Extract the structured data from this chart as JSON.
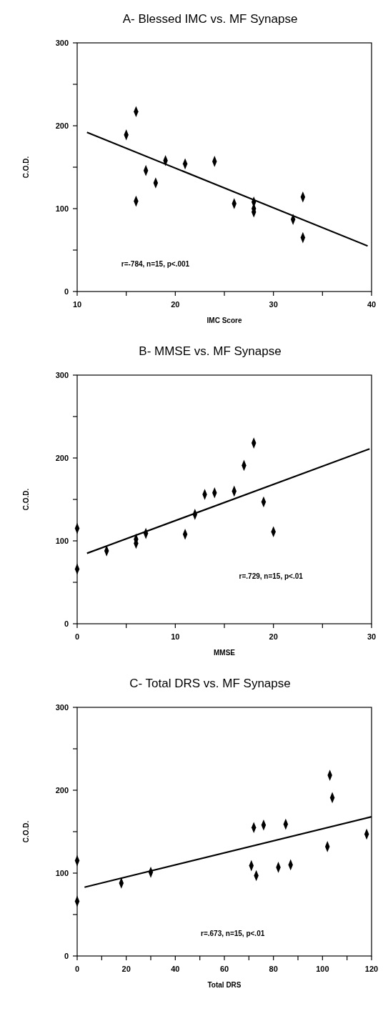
{
  "chart_data": [
    {
      "type": "scatter",
      "title": "A- Blessed IMC vs. MF Synapse",
      "xlabel": "IMC Score",
      "ylabel": "C.O.D.",
      "xlim": [
        10,
        40
      ],
      "xticks": [
        10,
        {
          "value": 15,
          "label": null
        },
        20,
        {
          "value": 25,
          "label": null
        },
        30,
        {
          "value": 35,
          "label": null
        },
        40
      ],
      "ylim": [
        0,
        300
      ],
      "yticks": [
        0,
        {
          "value": 50,
          "label": null
        },
        100,
        {
          "value": 150,
          "label": null
        },
        200,
        {
          "value": 250,
          "label": null
        },
        300
      ],
      "grid": false,
      "marker": "diamond",
      "annotations": [
        "r=-784, n=15, p<.001"
      ],
      "series": [
        {
          "color": "#000000",
          "x": [
            15,
            16,
            16,
            17,
            18,
            19,
            21,
            24,
            26,
            28,
            28,
            28,
            32,
            33,
            33
          ],
          "values": [
            189,
            217,
            109,
            146,
            131,
            158,
            154,
            157,
            106,
            108,
            100,
            96,
            87,
            114,
            65
          ]
        },
        {
          "type": "line",
          "color": "#000000",
          "marker": "none",
          "x": [
            11,
            39.6
          ],
          "values": [
            192,
            55
          ]
        }
      ]
    },
    {
      "type": "scatter",
      "title": "B- MMSE vs. MF Synapse",
      "xlabel": "MMSE",
      "ylabel": "C.O.D.",
      "xlim": [
        0,
        30
      ],
      "xticks": [
        0,
        {
          "value": 5,
          "label": null
        },
        10,
        {
          "value": 15,
          "label": null
        },
        20,
        {
          "value": 25,
          "label": null
        },
        30
      ],
      "ylim": [
        0,
        300
      ],
      "yticks": [
        0,
        {
          "value": 50,
          "label": null
        },
        100,
        {
          "value": 150,
          "label": null
        },
        200,
        {
          "value": 250,
          "label": null
        },
        300
      ],
      "grid": false,
      "marker": "diamond",
      "annotations": [
        "r=.729, n=15, p<.01"
      ],
      "series": [
        {
          "color": "#000000",
          "x": [
            0,
            0,
            3,
            6,
            6,
            7,
            11,
            12,
            13,
            14,
            16,
            17,
            18,
            19,
            20
          ],
          "values": [
            115,
            66,
            88,
            102,
            97,
            109,
            108,
            132,
            156,
            158,
            160,
            191,
            218,
            147,
            111
          ]
        },
        {
          "type": "line",
          "color": "#000000",
          "marker": "none",
          "x": [
            1,
            29.8
          ],
          "values": [
            85,
            211
          ]
        }
      ]
    },
    {
      "type": "scatter",
      "title": "C- Total DRS vs. MF Synapse",
      "xlabel": "Total DRS",
      "ylabel": "C.O.D.",
      "xlim": [
        0,
        120
      ],
      "xticks": [
        0,
        {
          "value": 10,
          "label": null
        },
        20,
        {
          "value": 30,
          "label": null
        },
        40,
        {
          "value": 50,
          "label": null
        },
        60,
        {
          "value": 70,
          "label": null
        },
        80,
        {
          "value": 90,
          "label": null
        },
        100,
        {
          "value": 110,
          "label": null
        },
        120
      ],
      "ylim": [
        0,
        300
      ],
      "yticks": [
        0,
        {
          "value": 50,
          "label": null
        },
        100,
        {
          "value": 150,
          "label": null
        },
        200,
        {
          "value": 250,
          "label": null
        },
        300
      ],
      "grid": false,
      "marker": "diamond",
      "annotations": [
        "r=.673, n=15, p<.01"
      ],
      "series": [
        {
          "color": "#000000",
          "x": [
            0,
            0,
            18,
            30,
            71,
            72,
            73,
            76,
            82,
            85,
            87,
            102,
            103,
            104,
            118
          ],
          "values": [
            115,
            66,
            88,
            101,
            109,
            155,
            97,
            158,
            107,
            159,
            110,
            132,
            218,
            191,
            147
          ]
        },
        {
          "type": "line",
          "color": "#000000",
          "marker": "none",
          "x": [
            3,
            120
          ],
          "values": [
            83,
            168
          ]
        }
      ]
    }
  ]
}
